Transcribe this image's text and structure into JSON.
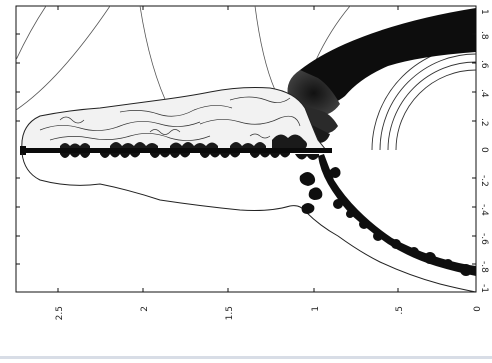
{
  "plot": {
    "x_ticks": [
      "2.5",
      "2",
      "1.5",
      "1",
      ".5",
      "0"
    ],
    "y_ticks": [
      "1",
      ".8",
      ".6",
      ".4",
      ".2",
      "0",
      "-.2",
      "-.4",
      "-.6",
      "-.8",
      "-1"
    ]
  }
}
